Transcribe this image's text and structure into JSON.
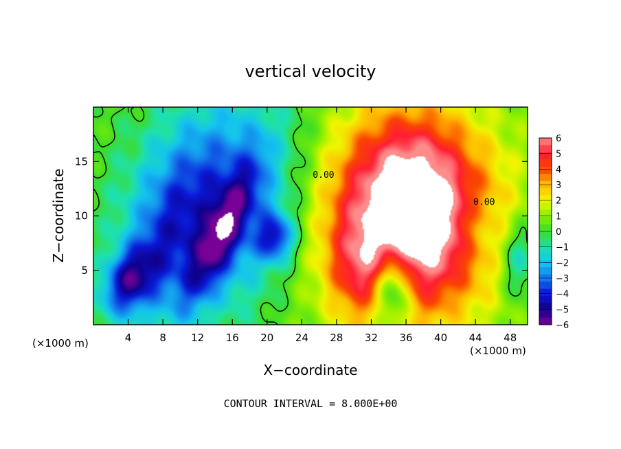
{
  "chart_data": {
    "type": "heatmap",
    "title": "vertical velocity",
    "xlabel": "X−coordinate",
    "ylabel": "Z−coordinate",
    "x_unit_left": "(×1000 m)",
    "x_unit_right": "(×1000 m)",
    "xlim": [
      0,
      50
    ],
    "ylim": [
      0,
      20
    ],
    "x_ticks": [
      4,
      8,
      12,
      16,
      20,
      24,
      28,
      32,
      36,
      40,
      44,
      48
    ],
    "y_ticks": [
      5,
      10,
      15
    ],
    "colorbar": {
      "min": -6,
      "max": 6,
      "tick_labels": [
        "6",
        "5",
        "4",
        "3",
        "2",
        "1",
        "0",
        "−1",
        "−2",
        "−3",
        "−4",
        "−5",
        "−6"
      ],
      "clip_color": "#ffffff"
    },
    "contour_labels": [
      {
        "text": "0.00",
        "x": 26.5,
        "y": 13.5
      },
      {
        "text": "0.00",
        "x": 45.0,
        "y": 11.0
      }
    ],
    "features": [
      {
        "kind": "updraft",
        "peak": 7,
        "x": 36,
        "y": 10
      },
      {
        "kind": "downdraft",
        "peak": -7,
        "x": 3.5,
        "y": 4
      },
      {
        "kind": "downdraft",
        "peak": -7,
        "x": 14,
        "y": 8
      },
      {
        "kind": "downdraft",
        "peak": -7,
        "x": 21,
        "y": 8
      }
    ],
    "footer": "CONTOUR INTERVAL = 8.000E+00"
  }
}
